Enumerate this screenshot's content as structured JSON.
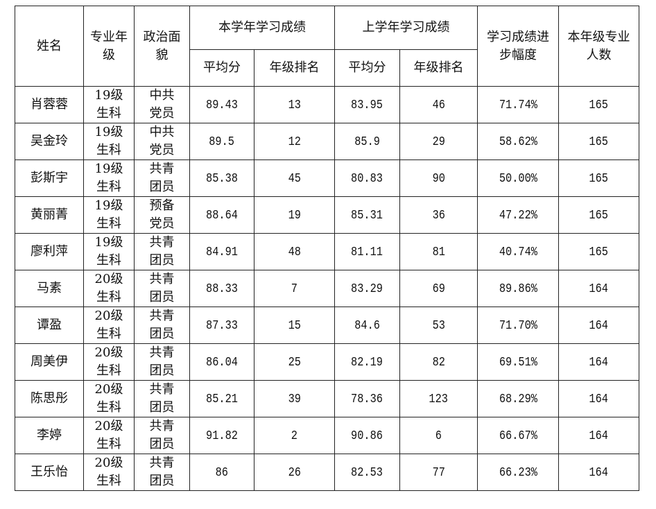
{
  "headers": {
    "name": "姓名",
    "major_grade": "专业年\n级",
    "political_status": "政治面\n貌",
    "this_year": "本学年学习成绩",
    "last_year": "上学年学习成绩",
    "avg": "平均分",
    "rank": "年级排名",
    "progress": "学习成绩进\n步幅度",
    "count": "本年级专业\n人数"
  },
  "rows": [
    {
      "name": "肖蓉蓉",
      "grade": "19级\n生科",
      "status": "中共\n党员",
      "avg_now": "89.43",
      "rank_now": "13",
      "avg_prev": "83.95",
      "rank_prev": "46",
      "progress": "71.74%",
      "count": "165"
    },
    {
      "name": "吴金玲",
      "grade": "19级\n生科",
      "status": "中共\n党员",
      "avg_now": "89.5",
      "rank_now": "12",
      "avg_prev": "85.9",
      "rank_prev": "29",
      "progress": "58.62%",
      "count": "165"
    },
    {
      "name": "彭斯宇",
      "grade": "19级\n生科",
      "status": "共青\n团员",
      "avg_now": "85.38",
      "rank_now": "45",
      "avg_prev": "80.83",
      "rank_prev": "90",
      "progress": "50.00%",
      "count": "165"
    },
    {
      "name": "黄丽菁",
      "grade": "19级\n生科",
      "status": "预备\n党员",
      "avg_now": "88.64",
      "rank_now": "19",
      "avg_prev": "85.31",
      "rank_prev": "36",
      "progress": "47.22%",
      "count": "165"
    },
    {
      "name": "廖利萍",
      "grade": "19级\n生科",
      "status": "共青\n团员",
      "avg_now": "84.91",
      "rank_now": "48",
      "avg_prev": "81.11",
      "rank_prev": "81",
      "progress": "40.74%",
      "count": "165"
    },
    {
      "name": "马素",
      "grade": "20级\n生科",
      "status": "共青\n团员",
      "avg_now": "88.33",
      "rank_now": "7",
      "avg_prev": "83.29",
      "rank_prev": "69",
      "progress": "89.86%",
      "count": "164"
    },
    {
      "name": "谭盈",
      "grade": "20级\n生科",
      "status": "共青\n团员",
      "avg_now": "87.33",
      "rank_now": "15",
      "avg_prev": "84.6",
      "rank_prev": "53",
      "progress": "71.70%",
      "count": "164"
    },
    {
      "name": "周美伊",
      "grade": "20级\n生科",
      "status": "共青\n团员",
      "avg_now": "86.04",
      "rank_now": "25",
      "avg_prev": "82.19",
      "rank_prev": "82",
      "progress": "69.51%",
      "count": "164"
    },
    {
      "name": "陈思彤",
      "grade": "20级\n生科",
      "status": "共青\n团员",
      "avg_now": "85.21",
      "rank_now": "39",
      "avg_prev": "78.36",
      "rank_prev": "123",
      "progress": "68.29%",
      "count": "164"
    },
    {
      "name": "李婷",
      "grade": "20级\n生科",
      "status": "共青\n团员",
      "avg_now": "91.82",
      "rank_now": "2",
      "avg_prev": "90.86",
      "rank_prev": "6",
      "progress": "66.67%",
      "count": "164"
    },
    {
      "name": "王乐怡",
      "grade": "20级\n生科",
      "status": "共青\n团员",
      "avg_now": "86",
      "rank_now": "26",
      "avg_prev": "82.53",
      "rank_prev": "77",
      "progress": "66.23%",
      "count": "164"
    }
  ]
}
